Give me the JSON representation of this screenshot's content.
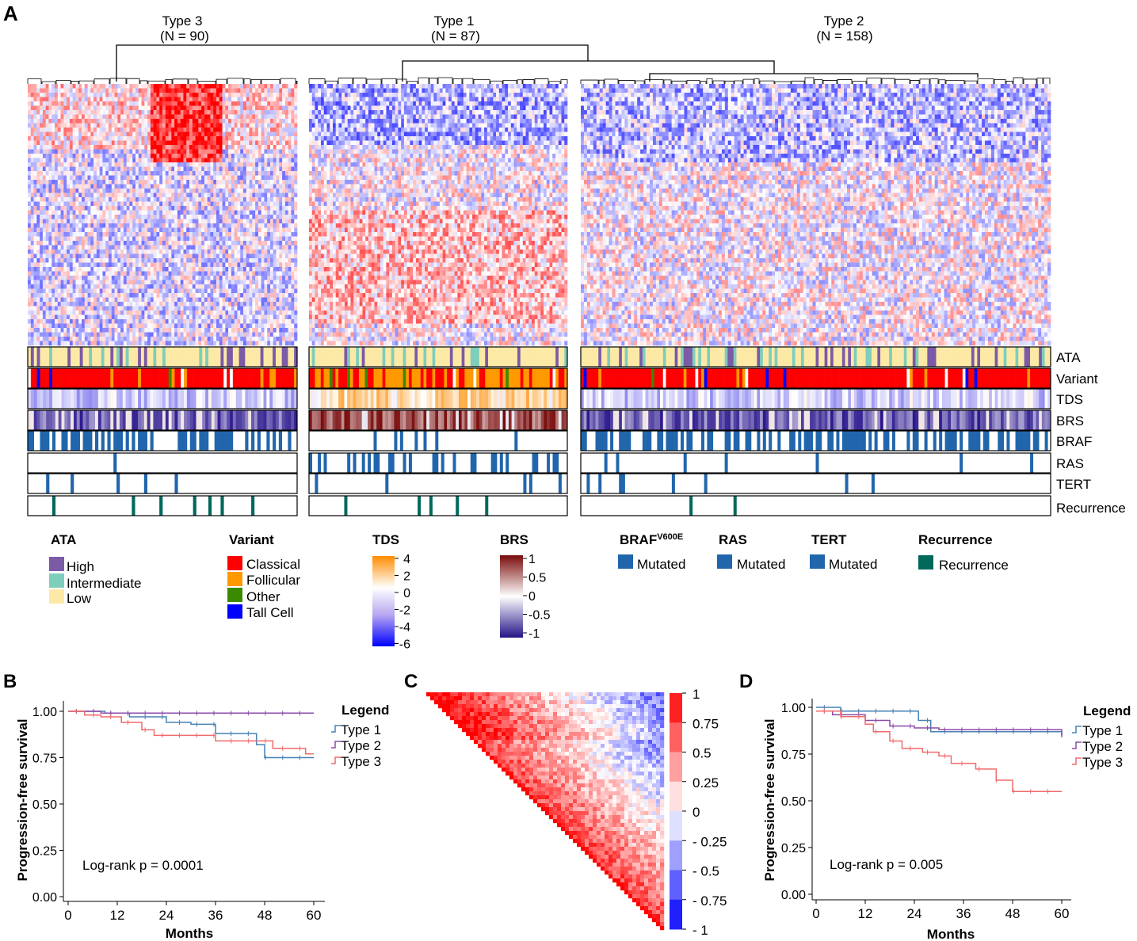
{
  "panels": {
    "a": "A",
    "b": "B",
    "c": "C",
    "d": "D"
  },
  "clusters": [
    {
      "name": "Type 3",
      "n": "(N = 90)"
    },
    {
      "name": "Type 1",
      "n": "(N = 87)"
    },
    {
      "name": "Type 2",
      "n": "(N = 158)"
    }
  ],
  "tracks": [
    "ATA",
    "Variant",
    "TDS",
    "BRS",
    "BRAF",
    "RAS",
    "TERT",
    "Recurrence"
  ],
  "legends": {
    "ata": {
      "title": "ATA",
      "items": [
        "High",
        "Intermediate",
        "Low"
      ],
      "colors": [
        "#7b5aa6",
        "#7fcdbb",
        "#fde9a6"
      ]
    },
    "variant": {
      "title": "Variant",
      "items": [
        "Classical",
        "Follicular",
        "Other",
        "Tall Cell"
      ],
      "colors": [
        "#ff0000",
        "#ff9900",
        "#3a8a00",
        "#0000ff"
      ]
    },
    "tds": {
      "title": "TDS",
      "ticks": [
        "4",
        "2",
        "0",
        "-2",
        "-4",
        "-6"
      ]
    },
    "brs": {
      "title": "BRS",
      "ticks": [
        "1",
        "0.5",
        "0",
        "-0.5",
        "-1"
      ]
    },
    "braf": {
      "title": "BRAF",
      "sup": "V600E",
      "item": "Mutated"
    },
    "ras": {
      "title": "RAS",
      "item": "Mutated"
    },
    "tert": {
      "title": "TERT",
      "item": "Mutated"
    },
    "recurrence": {
      "title": "Recurrence",
      "item": "Recurrence"
    }
  },
  "colors": {
    "mutated": "#2166ac",
    "recurrence": "#00695c",
    "type1": "#4682b4",
    "type2": "#8b4aa8",
    "type3": "#f06b6b"
  },
  "chart_data": [
    {
      "type": "line",
      "panel": "B",
      "xlabel": "Months",
      "ylabel": "Progression-free survival",
      "x_ticks": [
        "0",
        "12",
        "24",
        "36",
        "48",
        "60"
      ],
      "y_ticks": [
        "0.00",
        "0.25",
        "0.50",
        "0.75",
        "1.00"
      ],
      "xlim": [
        0,
        60
      ],
      "ylim": [
        0,
        1
      ],
      "legend_title": "Legend",
      "annotation": "Log-rank p = 0.0001",
      "series": [
        {
          "name": "Type 1",
          "x": [
            0,
            9,
            15,
            24,
            30,
            36,
            46,
            48,
            60
          ],
          "y": [
            1.0,
            0.99,
            0.97,
            0.94,
            0.93,
            0.88,
            0.82,
            0.75,
            0.75
          ]
        },
        {
          "name": "Type 2",
          "x": [
            0,
            3,
            8,
            60
          ],
          "y": [
            1.0,
            1.0,
            0.99,
            0.99
          ]
        },
        {
          "name": "Type 3",
          "x": [
            0,
            4,
            8,
            13,
            18,
            21,
            30,
            36,
            40,
            50,
            58,
            60
          ],
          "y": [
            1.0,
            0.98,
            0.97,
            0.94,
            0.9,
            0.87,
            0.87,
            0.84,
            0.84,
            0.8,
            0.77,
            0.77
          ]
        }
      ]
    },
    {
      "type": "heatmap",
      "panel": "C",
      "colorbar_ticks": [
        "1",
        "0.75",
        "0.5",
        "0.25",
        "0",
        "- 0.25",
        "- 0.5",
        "- 0.75",
        "- 1"
      ]
    },
    {
      "type": "line",
      "panel": "D",
      "xlabel": "Months",
      "ylabel": "Progression-free survival",
      "x_ticks": [
        "0",
        "12",
        "24",
        "36",
        "48",
        "60"
      ],
      "y_ticks": [
        "0.00",
        "0.25",
        "0.50",
        "0.75",
        "1.00"
      ],
      "xlim": [
        0,
        60
      ],
      "ylim": [
        0,
        1
      ],
      "legend_title": "Legend",
      "annotation": "Log-rank p = 0.005",
      "series": [
        {
          "name": "Type 1",
          "x": [
            0,
            6,
            25,
            28,
            58,
            60
          ],
          "y": [
            1.0,
            0.98,
            0.93,
            0.87,
            0.87,
            0.85
          ]
        },
        {
          "name": "Type 2",
          "x": [
            0,
            4,
            12,
            18,
            24,
            30,
            59,
            60
          ],
          "y": [
            0.98,
            0.96,
            0.93,
            0.9,
            0.89,
            0.88,
            0.88,
            0.84
          ]
        },
        {
          "name": "Type 3",
          "x": [
            0,
            6,
            12,
            14,
            18,
            21,
            26,
            30,
            33,
            39,
            40,
            44,
            48,
            58,
            60
          ],
          "y": [
            0.98,
            0.95,
            0.91,
            0.87,
            0.82,
            0.78,
            0.76,
            0.74,
            0.7,
            0.67,
            0.67,
            0.61,
            0.55,
            0.55,
            0.55
          ]
        }
      ]
    }
  ]
}
